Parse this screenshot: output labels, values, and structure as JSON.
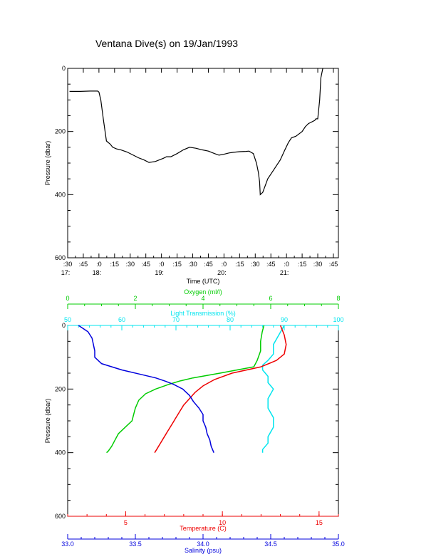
{
  "title": "Ventana Dive(s) on 19/Jan/1993",
  "colors": {
    "axis": "#000000",
    "oxygen": "#00cc00",
    "light": "#00e5ee",
    "temperature": "#ee0000",
    "salinity": "#0000dd"
  },
  "chart_data": [
    {
      "type": "line",
      "title": "Ventana Dive(s) on 19/Jan/1993",
      "xlabel": "Time (UTC)",
      "ylabel": "Pressure (dbar)",
      "xlim": [
        17.5,
        21.83
      ],
      "ylim": [
        600,
        0
      ],
      "x_unit": "hours (UTC)",
      "x_ticks": [
        {
          "top": ":30",
          "bottom": "17:"
        },
        {
          "top": ":45",
          "bottom": ""
        },
        {
          "top": ":0",
          "bottom": "18:"
        },
        {
          "top": ":15",
          "bottom": ""
        },
        {
          "top": ":30",
          "bottom": ""
        },
        {
          "top": ":45",
          "bottom": ""
        },
        {
          "top": ":0",
          "bottom": "19:"
        },
        {
          "top": ":15",
          "bottom": ""
        },
        {
          "top": ":30",
          "bottom": ""
        },
        {
          "top": ":45",
          "bottom": ""
        },
        {
          "top": ":0",
          "bottom": "20:"
        },
        {
          "top": ":15",
          "bottom": ""
        },
        {
          "top": ":30",
          "bottom": ""
        },
        {
          "top": ":45",
          "bottom": ""
        },
        {
          "top": ":0",
          "bottom": "21:"
        },
        {
          "top": ":15",
          "bottom": ""
        },
        {
          "top": ":30",
          "bottom": ""
        },
        {
          "top": ":45",
          "bottom": ""
        }
      ],
      "y_ticks": [
        "0",
        "200",
        "400",
        "600"
      ],
      "grid": false,
      "series": [
        {
          "x": [
            17.53,
            17.7,
            17.86,
            17.98,
            18.0,
            18.03,
            18.07,
            18.12,
            18.18,
            18.22,
            18.28,
            18.35,
            18.45,
            18.55,
            18.63,
            18.72,
            18.8,
            18.9,
            19.03,
            19.08,
            19.15,
            19.25,
            19.35,
            19.45,
            19.55,
            19.65,
            19.75,
            19.85,
            19.92,
            20.0,
            20.08,
            20.15,
            20.25,
            20.35,
            20.4,
            20.47,
            20.52,
            20.55,
            20.57,
            20.58,
            20.62,
            20.7,
            20.8,
            20.9,
            20.97,
            21.03,
            21.08,
            21.15,
            21.25,
            21.3,
            21.35,
            21.4,
            21.45,
            21.47,
            21.5,
            21.53,
            21.55,
            21.58
          ],
          "y": [
            73,
            73,
            72,
            72,
            75,
            100,
            160,
            230,
            240,
            250,
            255,
            258,
            265,
            275,
            283,
            290,
            298,
            295,
            285,
            280,
            280,
            270,
            258,
            250,
            253,
            258,
            262,
            270,
            275,
            272,
            268,
            266,
            264,
            263,
            262,
            270,
            300,
            330,
            360,
            400,
            393,
            350,
            320,
            290,
            260,
            235,
            220,
            215,
            200,
            185,
            175,
            170,
            165,
            160,
            160,
            100,
            30,
            0
          ]
        }
      ]
    },
    {
      "type": "line",
      "ylabel": "Pressure (dbar)",
      "ylim": [
        600,
        0
      ],
      "y_ticks": [
        "0",
        "200",
        "400",
        "600"
      ],
      "grid": false,
      "axes": {
        "oxygen": {
          "label": "Oxygen (ml/l)",
          "lim": [
            0,
            8
          ],
          "ticks": [
            "0",
            "2",
            "4",
            "6",
            "8"
          ],
          "position": "top"
        },
        "light": {
          "label": "Light Transmission (%)",
          "lim": [
            50,
            100
          ],
          "ticks": [
            "50",
            "60",
            "70",
            "80",
            "90",
            "100"
          ],
          "position": "top"
        },
        "temperature": {
          "label": "Temperature (C)",
          "lim": [
            2,
            16
          ],
          "ticks": [
            "5",
            "10",
            "15"
          ],
          "position": "bottom"
        },
        "salinity": {
          "label": "Salinity (psu)",
          "lim": [
            33.0,
            35.0
          ],
          "ticks": [
            "33.0",
            "33.5",
            "34.0",
            "34.5",
            "35.0"
          ],
          "position": "bottom"
        }
      },
      "series": [
        {
          "name": "Oxygen (ml/l)",
          "axis": "oxygen",
          "pressure": [
            0,
            20,
            50,
            80,
            110,
            130,
            150,
            165,
            175,
            185,
            200,
            215,
            235,
            260,
            280,
            300,
            320,
            340,
            360,
            380,
            395,
            400
          ],
          "values": [
            5.8,
            5.75,
            5.7,
            5.7,
            5.6,
            5.5,
            4.5,
            3.7,
            3.3,
            3.0,
            2.6,
            2.3,
            2.1,
            2.0,
            1.95,
            1.9,
            1.7,
            1.5,
            1.4,
            1.3,
            1.2,
            1.15
          ]
        },
        {
          "name": "Light Transmission (%)",
          "axis": "light",
          "pressure": [
            0,
            30,
            60,
            90,
            110,
            125,
            140,
            160,
            180,
            200,
            230,
            260,
            290,
            320,
            350,
            370,
            390,
            400
          ],
          "values": [
            90,
            89,
            88,
            88,
            87,
            86,
            86,
            87,
            87,
            88,
            87,
            87,
            88,
            88,
            87,
            87,
            86,
            86
          ]
        },
        {
          "name": "Temperature (C)",
          "axis": "temperature",
          "pressure": [
            0,
            30,
            60,
            90,
            110,
            130,
            150,
            170,
            190,
            210,
            230,
            250,
            270,
            290,
            310,
            330,
            350,
            370,
            390,
            400
          ],
          "values": [
            13.0,
            13.2,
            13.3,
            13.2,
            12.8,
            12.0,
            10.5,
            9.6,
            9.0,
            8.6,
            8.3,
            8.0,
            7.8,
            7.6,
            7.4,
            7.2,
            7.0,
            6.8,
            6.6,
            6.5
          ]
        },
        {
          "name": "Salinity (psu)",
          "axis": "salinity",
          "pressure": [
            0,
            20,
            40,
            60,
            80,
            100,
            120,
            140,
            155,
            165,
            175,
            185,
            200,
            220,
            240,
            260,
            280,
            300,
            320,
            340,
            360,
            380,
            400
          ],
          "values": [
            33.08,
            33.15,
            33.18,
            33.19,
            33.2,
            33.2,
            33.25,
            33.4,
            33.55,
            33.65,
            33.72,
            33.78,
            33.85,
            33.9,
            33.93,
            33.97,
            34.0,
            34.0,
            34.02,
            34.03,
            34.05,
            34.06,
            34.08
          ]
        }
      ]
    }
  ]
}
